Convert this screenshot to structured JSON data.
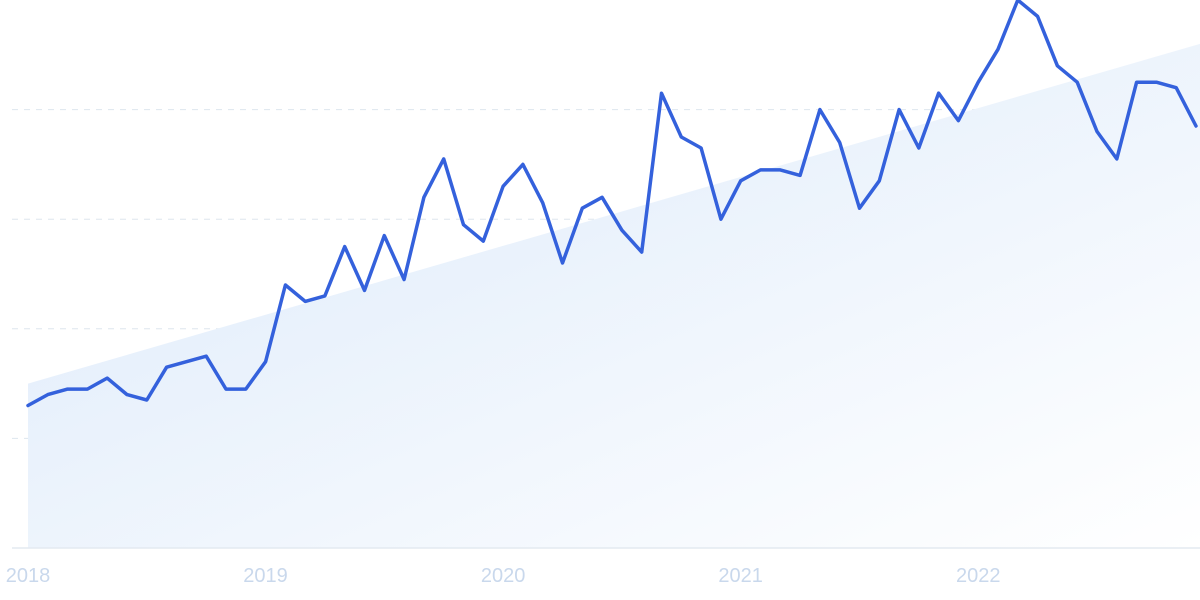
{
  "chart_data": {
    "type": "line",
    "title": "",
    "xlabel": "",
    "ylabel": "",
    "x_start": "2018-01",
    "x_end": "2022-12",
    "xticks": [
      "2018",
      "2019",
      "2020",
      "2021",
      "2022"
    ],
    "ylim": [
      0,
      100
    ],
    "grid": true,
    "series": [
      {
        "values": [
          26,
          28,
          29,
          29,
          31,
          28,
          27,
          33,
          34,
          35,
          29,
          29,
          34,
          48,
          45,
          46,
          55,
          47,
          57,
          49,
          64,
          71,
          59,
          56,
          66,
          70,
          63,
          52,
          62,
          64,
          58,
          54,
          83,
          75,
          73,
          60,
          67,
          69,
          69,
          68,
          80,
          74,
          62,
          67,
          80,
          73,
          83,
          78,
          85,
          91,
          100,
          97,
          88,
          85,
          76,
          71,
          85,
          85,
          84,
          77
        ]
      }
    ],
    "trend_area": {
      "start": 30,
      "end": 92
    },
    "colors": {
      "line": "#3461dc",
      "area_top": "#dbe9fa",
      "area_bottom": "#ffffff"
    }
  }
}
